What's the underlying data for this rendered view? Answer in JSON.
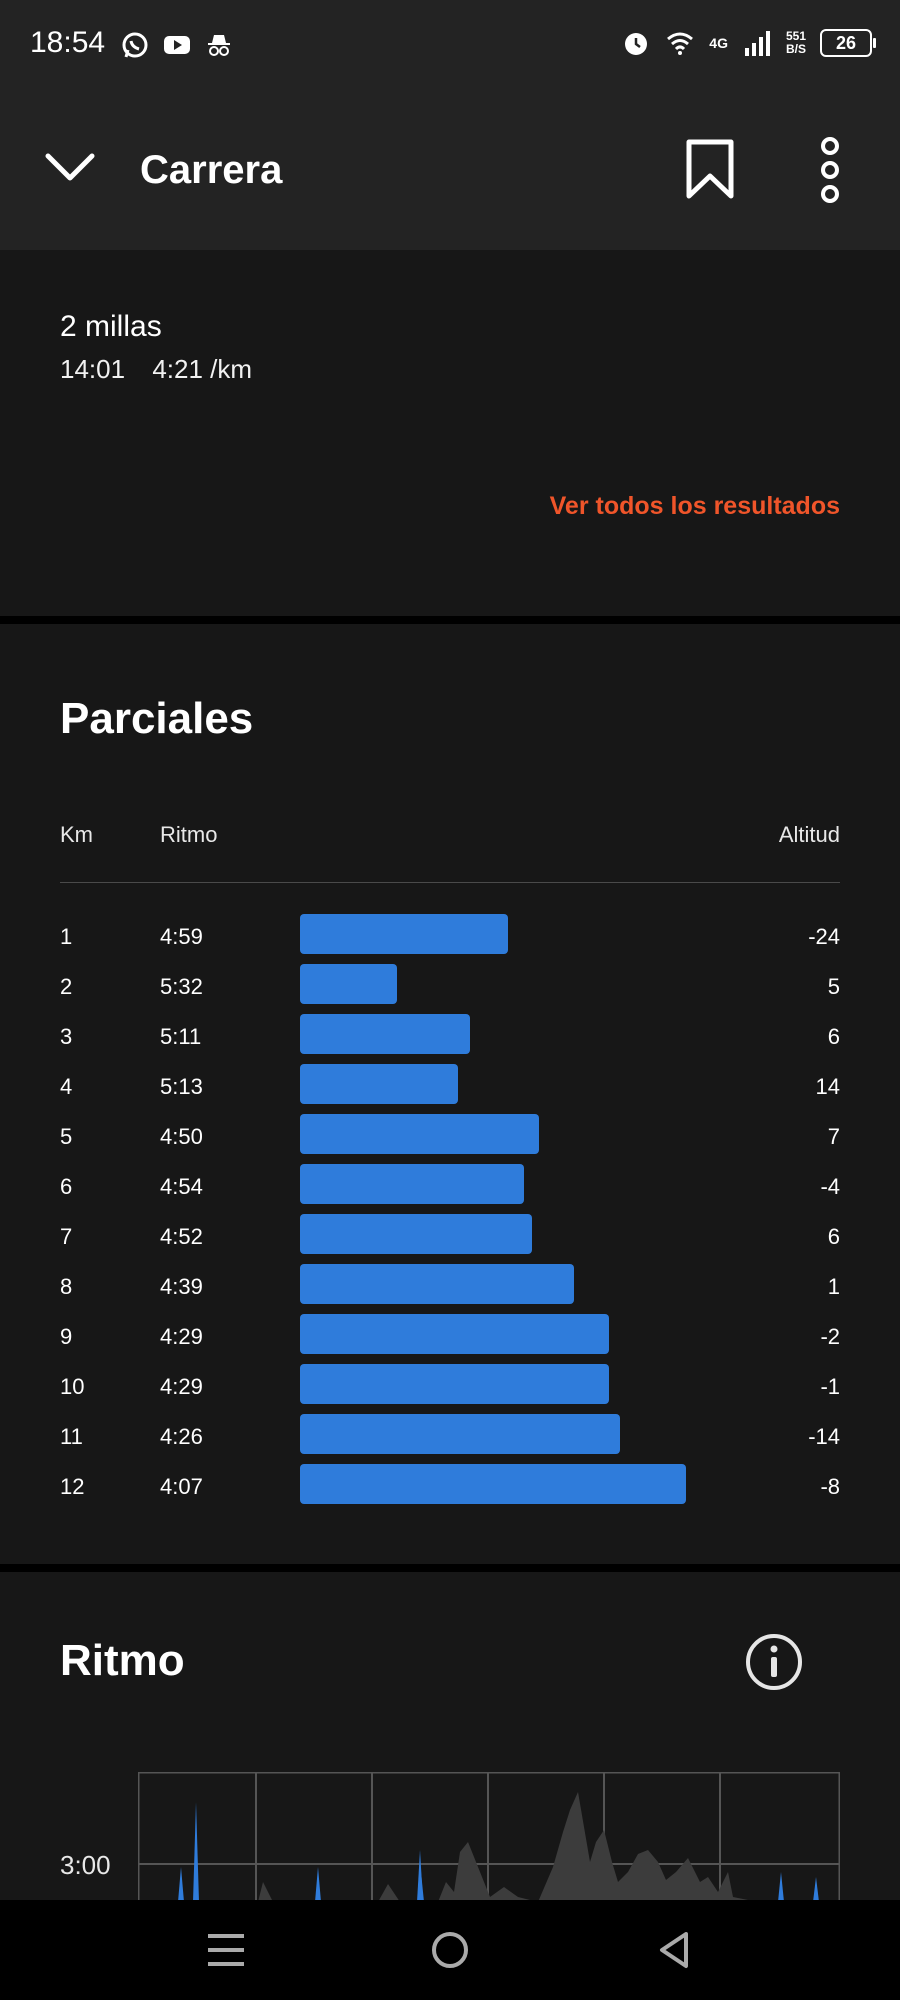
{
  "status_bar": {
    "time": "18:54",
    "network": "4G",
    "speed_top": "551",
    "speed_bottom": "B/S",
    "battery": "26"
  },
  "app_bar": {
    "title": "Carrera"
  },
  "summary": {
    "distance": "2 millas",
    "time": "14:01",
    "pace": "4:21 /km",
    "see_all": "Ver todos los resultados"
  },
  "splits": {
    "heading": "Parciales",
    "col_km": "Km",
    "col_pace": "Ritmo",
    "col_alt": "Altitud",
    "rows": [
      {
        "km": "1",
        "pace": "4:59",
        "alt": "-24",
        "fill": 0.54
      },
      {
        "km": "2",
        "pace": "5:32",
        "alt": "5",
        "fill": 0.25
      },
      {
        "km": "3",
        "pace": "5:11",
        "alt": "6",
        "fill": 0.44
      },
      {
        "km": "4",
        "pace": "5:13",
        "alt": "14",
        "fill": 0.41
      },
      {
        "km": "5",
        "pace": "4:50",
        "alt": "7",
        "fill": 0.62
      },
      {
        "km": "6",
        "pace": "4:54",
        "alt": "-4",
        "fill": 0.58
      },
      {
        "km": "7",
        "pace": "4:52",
        "alt": "6",
        "fill": 0.6
      },
      {
        "km": "8",
        "pace": "4:39",
        "alt": "1",
        "fill": 0.71
      },
      {
        "km": "9",
        "pace": "4:29",
        "alt": "-2",
        "fill": 0.8
      },
      {
        "km": "10",
        "pace": "4:29",
        "alt": "-1",
        "fill": 0.8
      },
      {
        "km": "11",
        "pace": "4:26",
        "alt": "-14",
        "fill": 0.83
      },
      {
        "km": "12",
        "pace": "4:07",
        "alt": "-8",
        "fill": 1.0
      }
    ]
  },
  "pace_section": {
    "heading": "Ritmo",
    "y_label": "3:00"
  },
  "colors": {
    "accent": "#f0552a",
    "bar": "#2f7cdb"
  }
}
